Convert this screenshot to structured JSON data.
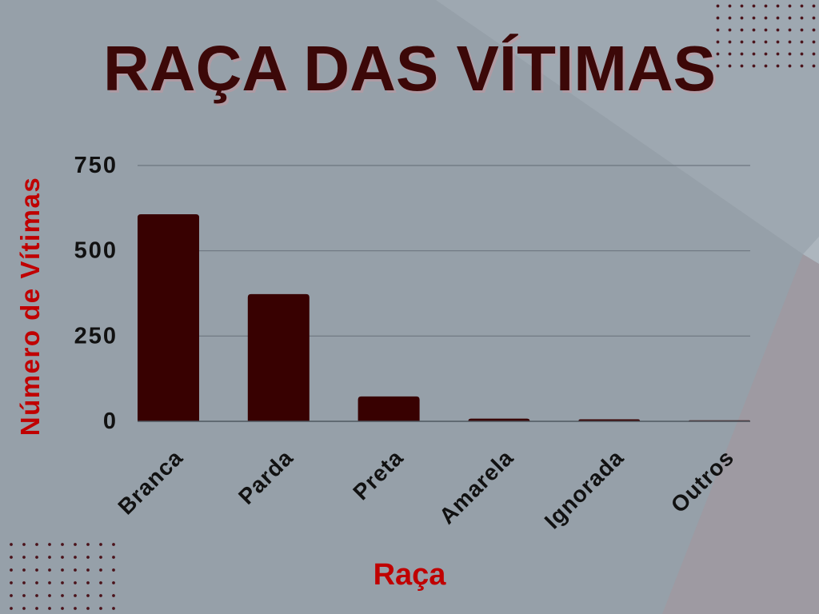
{
  "colors": {
    "background": "#96a0a9",
    "title": "#3c0808",
    "bars": "#380101",
    "axis_labels": "#c00000",
    "ticks": "#111111",
    "gridlines": "#6d7680",
    "dots": "#4a1119"
  },
  "chart_data": {
    "type": "bar",
    "title": "RAÇA DAS VÍTIMAS",
    "xlabel": "Raça",
    "ylabel": "Número de Vítimas",
    "categories": [
      "Branca",
      "Parda",
      "Preta",
      "Amarela",
      "Ignorada",
      "Outros"
    ],
    "values": [
      607,
      373,
      73,
      8,
      6,
      3
    ],
    "ylim": [
      0,
      750
    ],
    "yticks": [
      0,
      250,
      500,
      750
    ],
    "grid": true
  }
}
